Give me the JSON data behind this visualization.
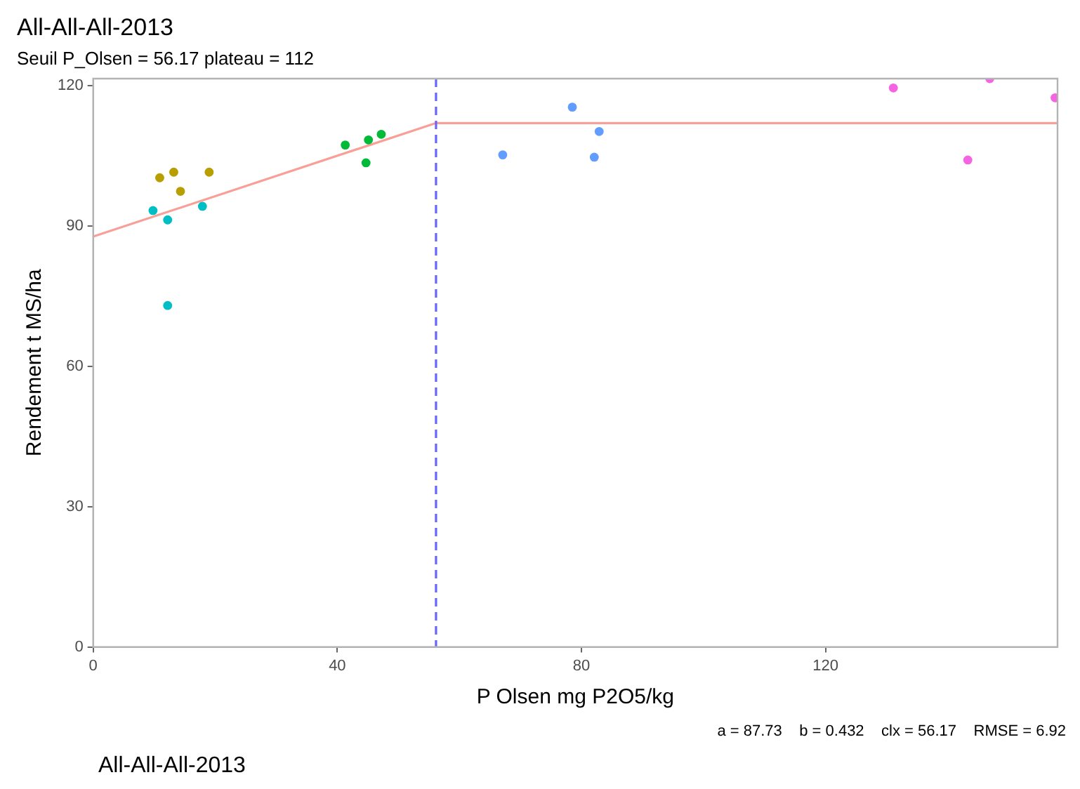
{
  "chart_data": {
    "type": "scatter",
    "title": "All-All-All-2013",
    "subtitle": "Seuil P_Olsen = 56.17 plateau = 112",
    "xlabel": "P Olsen mg P2O5/kg",
    "ylabel": "Rendement t MS/ha",
    "xlim": [
      0,
      158
    ],
    "xticks": [
      0,
      40,
      80,
      120
    ],
    "ylim": [
      0,
      121.5
    ],
    "yticks": [
      0,
      30,
      60,
      90,
      120
    ],
    "grid": false,
    "legend": false,
    "marker": "circle",
    "series": [
      {
        "color": "#b79f00",
        "x": [
          10.9,
          13.2,
          14.3,
          19.0
        ],
        "values": [
          100.3,
          101.5,
          97.4,
          101.5
        ]
      },
      {
        "color": "#00bfc4",
        "x": [
          9.8,
          12.2,
          17.9,
          12.2
        ],
        "values": [
          93.3,
          91.3,
          94.2,
          73.0
        ]
      },
      {
        "color": "#00ba38",
        "x": [
          41.3,
          45.1,
          47.2,
          44.7
        ],
        "values": [
          107.3,
          108.4,
          109.6,
          103.5
        ]
      },
      {
        "color": "#619cff",
        "x": [
          67.1,
          78.5,
          82.9,
          82.1
        ],
        "values": [
          105.2,
          115.4,
          110.2,
          104.7
        ]
      },
      {
        "color": "#f564e3",
        "x": [
          131.1,
          143.3,
          146.9,
          157.6
        ],
        "values": [
          119.5,
          104.1,
          121.5,
          117.4
        ]
      },
      {
        "type": "line",
        "color": "#f8a098",
        "x": [
          0,
          56.17,
          158
        ],
        "values": [
          87.73,
          112,
          112
        ],
        "marker": "none",
        "line_style": "solid"
      }
    ],
    "ref_lines": [
      {
        "axis": "x",
        "value": 56.17,
        "color": "#6666ff",
        "line_style": "dashed"
      }
    ],
    "annotations": [
      "a = 87.73    b = 0.432    clx = 56.17    RMSE = 6.92",
      "All-All-All-2013"
    ]
  }
}
